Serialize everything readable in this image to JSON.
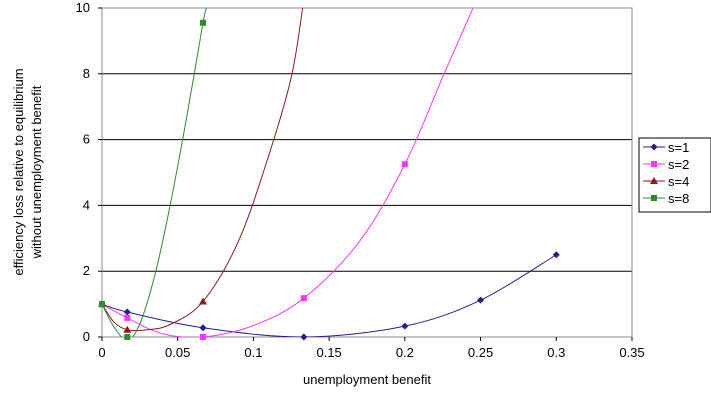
{
  "chart_data": {
    "type": "scatter",
    "xlabel": "unemployment benefit",
    "ylabel_lines": [
      "efficiency loss relative to equilibrium",
      "without unemployment benefit"
    ],
    "xlim": [
      0,
      0.35
    ],
    "ylim": [
      0,
      10
    ],
    "x_ticks": [
      0,
      0.05,
      0.1,
      0.15,
      0.2,
      0.25,
      0.3,
      0.35
    ],
    "x_tick_labels": [
      "0",
      "0.05",
      "0.1",
      "0.15",
      "0.2",
      "0.25",
      "0.3",
      "0.35"
    ],
    "y_ticks": [
      0,
      2,
      4,
      6,
      8,
      10
    ],
    "y_tick_labels": [
      "0",
      "2",
      "4",
      "6",
      "8",
      "10"
    ],
    "grid": "horizontal",
    "legend_position": "right",
    "series": [
      {
        "name": "s=1",
        "color": "#1f1f8f",
        "marker": "diamond",
        "points": [
          [
            0,
            1.0
          ],
          [
            0.0167,
            0.76
          ],
          [
            0.0667,
            0.28
          ],
          [
            0.1333,
            0.0
          ],
          [
            0.2,
            0.33
          ],
          [
            0.25,
            1.12
          ],
          [
            0.3,
            2.5
          ]
        ],
        "curve": [
          [
            0,
            1.0
          ],
          [
            0.0167,
            0.76
          ],
          [
            0.0667,
            0.28
          ],
          [
            0.1333,
            0.0
          ],
          [
            0.2,
            0.33
          ],
          [
            0.25,
            1.12
          ],
          [
            0.3,
            2.5
          ]
        ]
      },
      {
        "name": "s=2",
        "color": "#ff33ff",
        "marker": "square",
        "points": [
          [
            0,
            1.0
          ],
          [
            0.0167,
            0.58
          ],
          [
            0.0667,
            0.0
          ],
          [
            0.1333,
            1.18
          ],
          [
            0.2,
            5.25
          ]
        ],
        "curve": [
          [
            0,
            1.0
          ],
          [
            0.0167,
            0.58
          ],
          [
            0.04,
            0.1
          ],
          [
            0.0667,
            0.0
          ],
          [
            0.1,
            0.35
          ],
          [
            0.1333,
            1.18
          ],
          [
            0.17,
            2.9
          ],
          [
            0.2,
            5.25
          ],
          [
            0.225,
            7.9
          ],
          [
            0.245,
            10.0
          ]
        ]
      },
      {
        "name": "s=4",
        "color": "#8b1a1a",
        "marker": "triangle",
        "points": [
          [
            0,
            1.0
          ],
          [
            0.0167,
            0.22
          ],
          [
            0.0667,
            1.08
          ]
        ],
        "curve": [
          [
            0,
            1.0
          ],
          [
            0.008,
            0.45
          ],
          [
            0.0167,
            0.22
          ],
          [
            0.03,
            0.22
          ],
          [
            0.045,
            0.38
          ],
          [
            0.0667,
            1.08
          ],
          [
            0.09,
            2.9
          ],
          [
            0.11,
            5.5
          ],
          [
            0.125,
            7.9
          ],
          [
            0.1325,
            10.0
          ]
        ]
      },
      {
        "name": "s=8",
        "color": "#2e8b2e",
        "marker": "square",
        "points": [
          [
            0,
            1.0
          ],
          [
            0.0167,
            0.0
          ],
          [
            0.0667,
            9.55
          ]
        ],
        "curve": [
          [
            0,
            1.0
          ],
          [
            0.008,
            0.3
          ],
          [
            0.0167,
            -0.1
          ],
          [
            0.025,
            0.4
          ],
          [
            0.035,
            1.9
          ],
          [
            0.045,
            4.0
          ],
          [
            0.056,
            6.7
          ],
          [
            0.0667,
            9.55
          ],
          [
            0.069,
            10.0
          ]
        ]
      }
    ]
  }
}
